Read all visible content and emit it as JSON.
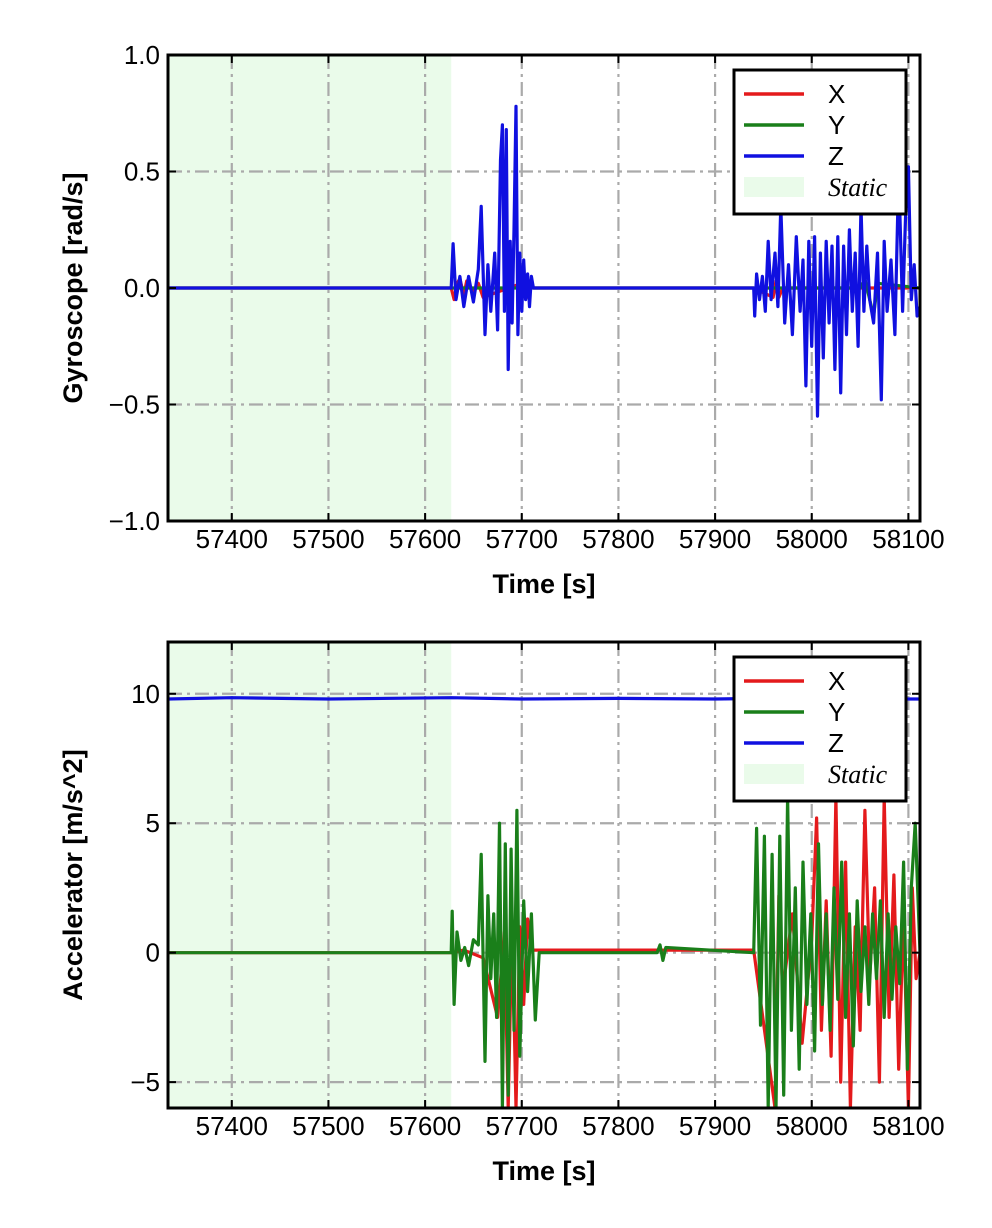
{
  "charts": [
    {
      "type": "line",
      "ylabel": "Gyroscope [rad/s]",
      "xlabel": "Time [s]",
      "xlim": [
        57334,
        58112
      ],
      "ylim": [
        -1.0,
        1.0
      ],
      "xticks": [
        57400,
        57500,
        57600,
        57700,
        57800,
        57900,
        58000,
        58100
      ],
      "xtick_labels": [
        "57400",
        "57500",
        "57600",
        "57700",
        "57800",
        "57900",
        "58000",
        "58100"
      ],
      "yticks": [
        -1.0,
        -0.5,
        0.0,
        0.5,
        1.0
      ],
      "ytick_labels": [
        "−1.0",
        "−0.5",
        "0.0",
        "0.5",
        "1.0"
      ],
      "grid": true,
      "legend_position": "top-right",
      "static_region": [
        57334,
        57627
      ],
      "legend": [
        {
          "label": "X",
          "color": "#e41a1c"
        },
        {
          "label": "Y",
          "color": "#1a7f1a"
        },
        {
          "label": "Z",
          "color": "#1010e0"
        },
        {
          "label": "Static",
          "color": "#eafbea"
        }
      ],
      "series": [
        {
          "name": "X",
          "color": "#e41a1c",
          "x": [
            57334,
            57627,
            57630,
            57633,
            57636,
            57640,
            57643,
            57650,
            57655,
            57660,
            57700,
            57705,
            57708,
            57712,
            57940,
            57960,
            57963,
            57966,
            57970,
            58112
          ],
          "y": [
            0,
            0,
            -0.05,
            0.02,
            0.04,
            -0.03,
            0.03,
            -0.02,
            0.02,
            -0.04,
            0.02,
            -0.04,
            0.03,
            0,
            0,
            -0.04,
            0.03,
            -0.04,
            0,
            0
          ]
        },
        {
          "name": "Y",
          "color": "#1a7f1a",
          "x": [
            57334,
            57627,
            57700,
            57703,
            57706,
            57710,
            58050,
            58055,
            58060,
            58064,
            58068,
            58112
          ],
          "y": [
            0,
            0,
            0,
            -0.03,
            0.02,
            0,
            0,
            0.04,
            -0.05,
            -0.12,
            0.02,
            0
          ]
        },
        {
          "name": "Z",
          "color": "#1010e0",
          "x": [
            57334,
            57627,
            57629,
            57632,
            57636,
            57640,
            57645,
            57650,
            57655,
            57658,
            57662,
            57665,
            57668,
            57672,
            57675,
            57678,
            57680,
            57682,
            57684,
            57686,
            57688,
            57690,
            57692,
            57694,
            57696,
            57698,
            57700,
            57702,
            57704,
            57706,
            57708,
            57710,
            57712,
            57940,
            57941,
            57943,
            57946,
            57949,
            57952,
            57955,
            57958,
            57962,
            57965,
            57968,
            57972,
            57976,
            57980,
            57984,
            57988,
            57991,
            57994,
            57997,
            58000,
            58003,
            58006,
            58009,
            58012,
            58015,
            58018,
            58021,
            58024,
            58027,
            58030,
            58033,
            58036,
            58039,
            58042,
            58045,
            58048,
            58051,
            58054,
            58057,
            58060,
            58064,
            58068,
            58072,
            58075,
            58078,
            58082,
            58086,
            58090,
            58094,
            58097,
            58100,
            58103,
            58106,
            58109,
            58112
          ],
          "y": [
            0,
            0,
            0.19,
            -0.05,
            0.05,
            -0.08,
            0.05,
            -0.06,
            0.08,
            0.35,
            -0.2,
            0.1,
            -0.1,
            0.15,
            -0.18,
            0.55,
            0.7,
            -0.1,
            0.68,
            -0.35,
            0.2,
            -0.15,
            0.25,
            0.78,
            -0.2,
            0.15,
            -0.1,
            0.12,
            -0.05,
            0.06,
            -0.08,
            0.05,
            0,
            0,
            -0.12,
            0.06,
            -0.05,
            0.05,
            -0.1,
            0.2,
            -0.05,
            0.15,
            -0.08,
            0.35,
            -0.15,
            0.1,
            -0.2,
            0.22,
            -0.1,
            0.12,
            -0.42,
            0.2,
            -0.25,
            0.22,
            -0.55,
            0.15,
            -0.3,
            0.2,
            -0.15,
            0.18,
            -0.35,
            0.22,
            -0.45,
            0.18,
            -0.2,
            0.25,
            -0.1,
            0.15,
            -0.25,
            0.35,
            -0.1,
            0.18,
            -0.05,
            -0.15,
            0.15,
            -0.48,
            0.2,
            -0.1,
            0.12,
            -0.2,
            0.5,
            -0.1,
            0.3,
            0.52,
            -0.05,
            0.1,
            -0.12,
            -0.08
          ]
        }
      ]
    },
    {
      "type": "line",
      "ylabel": "Accelerator [m/s^2]",
      "xlabel": "Time [s]",
      "xlim": [
        57334,
        58112
      ],
      "ylim": [
        -6,
        12
      ],
      "xticks": [
        57400,
        57500,
        57600,
        57700,
        57800,
        57900,
        58000,
        58100
      ],
      "xtick_labels": [
        "57400",
        "57500",
        "57600",
        "57700",
        "57800",
        "57900",
        "58000",
        "58100"
      ],
      "yticks": [
        -5,
        0,
        5,
        10
      ],
      "ytick_labels": [
        "−5",
        "0",
        "5",
        "10"
      ],
      "grid": true,
      "legend_position": "top-right",
      "static_region": [
        57334,
        57627
      ],
      "legend": [
        {
          "label": "X",
          "color": "#e41a1c"
        },
        {
          "label": "Y",
          "color": "#1a7f1a"
        },
        {
          "label": "Z",
          "color": "#1010e0"
        },
        {
          "label": "Static",
          "color": "#eafbea"
        }
      ],
      "series": [
        {
          "name": "Z",
          "color": "#1010e0",
          "x": [
            57334,
            57400,
            57500,
            57627,
            57700,
            57800,
            57900,
            58000,
            58100,
            58112
          ],
          "y": [
            9.8,
            9.85,
            9.8,
            9.85,
            9.8,
            9.82,
            9.8,
            9.85,
            9.8,
            9.8
          ]
        },
        {
          "name": "X",
          "color": "#e41a1c",
          "x": [
            57334,
            57627,
            57640,
            57660,
            57675,
            57682,
            57686,
            57690,
            57694,
            57698,
            57702,
            57706,
            57710,
            57940,
            57962,
            57966,
            57970,
            57980,
            57990,
            58000,
            58005,
            58010,
            58015,
            58020,
            58025,
            58030,
            58035,
            58040,
            58045,
            58050,
            58055,
            58060,
            58065,
            58070,
            58075,
            58080,
            58085,
            58090,
            58095,
            58100,
            58104,
            58108,
            58112
          ],
          "y": [
            0,
            0,
            0.1,
            -0.2,
            -2.5,
            0.8,
            -6,
            1.2,
            -6,
            1,
            -2,
            1.3,
            0.1,
            0.1,
            -6,
            2.2,
            -1.5,
            1.5,
            -3.5,
            0.5,
            5.2,
            -3,
            2,
            -4,
            6,
            -5,
            3.5,
            -6,
            1,
            -3,
            5.5,
            -1,
            2.5,
            -5,
            6,
            -2.5,
            3,
            -4.5,
            1.5,
            -6,
            2.5,
            -1,
            0
          ]
        },
        {
          "name": "Y",
          "color": "#1a7f1a",
          "x": [
            57334,
            57627,
            57628,
            57630,
            57633,
            57637,
            57641,
            57645,
            57650,
            57655,
            57658,
            57662,
            57665,
            57668,
            57671,
            57674,
            57677,
            57680,
            57683,
            57686,
            57689,
            57692,
            57695,
            57698,
            57702,
            57706,
            57710,
            57714,
            57718,
            57840,
            57843,
            57846,
            57849,
            57940,
            57943,
            57947,
            57951,
            57955,
            57959,
            57963,
            57967,
            57971,
            57975,
            57979,
            57983,
            57987,
            57991,
            57995,
            57999,
            58003,
            58007,
            58011,
            58015,
            58019,
            58023,
            58027,
            58031,
            58035,
            58039,
            58043,
            58047,
            58051,
            58055,
            58059,
            58063,
            58067,
            58071,
            58075,
            58079,
            58083,
            58087,
            58091,
            58095,
            58099,
            58103,
            58107,
            58112
          ],
          "y": [
            0,
            0,
            1.6,
            -2,
            0.8,
            -0.3,
            0.2,
            -0.5,
            0.5,
            0.3,
            3.8,
            -4.2,
            2.2,
            -1,
            1.5,
            -2.5,
            5,
            -6,
            4.2,
            -5.5,
            4,
            -3,
            5.5,
            -4,
            2,
            -1.5,
            1.5,
            -2.6,
            0,
            0,
            0.3,
            -0.3,
            0.2,
            0,
            4.8,
            -2.8,
            4.5,
            -6,
            3.8,
            -6,
            4.5,
            -5.5,
            6,
            -3,
            2.5,
            -4.5,
            3.5,
            -2,
            1.5,
            -3.8,
            4.2,
            -2,
            1.5,
            -3,
            2.5,
            -1.8,
            3.5,
            -2.5,
            1.5,
            -3.6,
            2,
            -1.5,
            1,
            -2,
            1.5,
            -1,
            2,
            -2.5,
            1.5,
            -1.8,
            1,
            -1.2,
            3.5,
            -4.5,
            2.5,
            5,
            0
          ]
        }
      ]
    }
  ]
}
